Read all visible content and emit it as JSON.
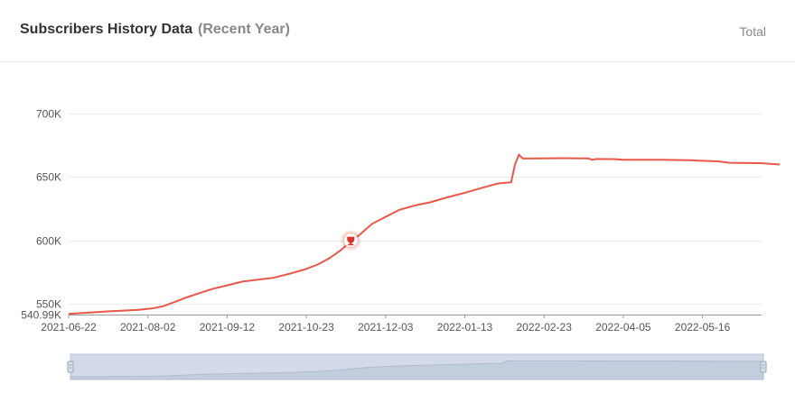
{
  "header": {
    "title": "Subscribers History Data",
    "subtitle": "(Recent Year)",
    "total_label": "Total"
  },
  "colors": {
    "line": "#e8574a",
    "grid": "#ebebeb",
    "slider_fill": "#d3dbe8",
    "slider_border": "#b7c2d4",
    "marker": "#d9342a"
  },
  "chart_data": {
    "type": "line",
    "series_color": "#e8574a",
    "y_ticks": [
      {
        "value": 700000,
        "label": "700K"
      },
      {
        "value": 650000,
        "label": "650K"
      },
      {
        "value": 600000,
        "label": "600K"
      },
      {
        "value": 550000,
        "label": "550K"
      },
      {
        "value": 540990,
        "label": "540.99K"
      }
    ],
    "x_ticks": [
      "2021-06-22",
      "2021-08-02",
      "2021-09-12",
      "2021-10-23",
      "2021-12-03",
      "2022-01-13",
      "2022-02-23",
      "2022-04-05",
      "2022-05-16"
    ],
    "xlim": [
      "2021-06-22",
      "2022-06-30"
    ],
    "ylim": [
      540990,
      710000
    ],
    "grid": true,
    "legend": "none",
    "marker_point": {
      "date": "2021-11-15",
      "value": 600000,
      "icon": "trophy-icon"
    },
    "points": [
      [
        "2021-06-22",
        541500
      ],
      [
        "2021-06-28",
        542200
      ],
      [
        "2021-07-05",
        542900
      ],
      [
        "2021-07-12",
        543600
      ],
      [
        "2021-07-20",
        544300
      ],
      [
        "2021-07-28",
        545000
      ],
      [
        "2021-08-04",
        546000
      ],
      [
        "2021-08-10",
        548000
      ],
      [
        "2021-08-16",
        551500
      ],
      [
        "2021-08-22",
        555000
      ],
      [
        "2021-08-28",
        558000
      ],
      [
        "2021-09-04",
        561500
      ],
      [
        "2021-09-12",
        564500
      ],
      [
        "2021-09-20",
        567500
      ],
      [
        "2021-09-28",
        569000
      ],
      [
        "2021-10-06",
        570500
      ],
      [
        "2021-10-14",
        573500
      ],
      [
        "2021-10-22",
        577000
      ],
      [
        "2021-10-29",
        581000
      ],
      [
        "2021-11-04",
        586000
      ],
      [
        "2021-11-10",
        592500
      ],
      [
        "2021-11-15",
        599000
      ],
      [
        "2021-11-20",
        605000
      ],
      [
        "2021-11-26",
        613000
      ],
      [
        "2021-12-03",
        618500
      ],
      [
        "2021-12-10",
        624000
      ],
      [
        "2021-12-18",
        627500
      ],
      [
        "2021-12-26",
        630000
      ],
      [
        "2022-01-03",
        633500
      ],
      [
        "2022-01-13",
        637500
      ],
      [
        "2022-01-22",
        641500
      ],
      [
        "2022-01-30",
        644800
      ],
      [
        "2022-02-06",
        645800
      ],
      [
        "2022-02-08",
        660000
      ],
      [
        "2022-02-10",
        667500
      ],
      [
        "2022-02-12",
        664500
      ],
      [
        "2022-03-05",
        664800
      ],
      [
        "2022-03-18",
        664600
      ],
      [
        "2022-03-20",
        663500
      ],
      [
        "2022-03-22",
        664200
      ],
      [
        "2022-04-01",
        664000
      ],
      [
        "2022-04-05",
        663500
      ],
      [
        "2022-04-25",
        663500
      ],
      [
        "2022-05-10",
        663200
      ],
      [
        "2022-05-14",
        662800
      ],
      [
        "2022-05-24",
        662300
      ],
      [
        "2022-05-30",
        661200
      ],
      [
        "2022-06-15",
        660900
      ],
      [
        "2022-06-25",
        659800
      ]
    ]
  }
}
